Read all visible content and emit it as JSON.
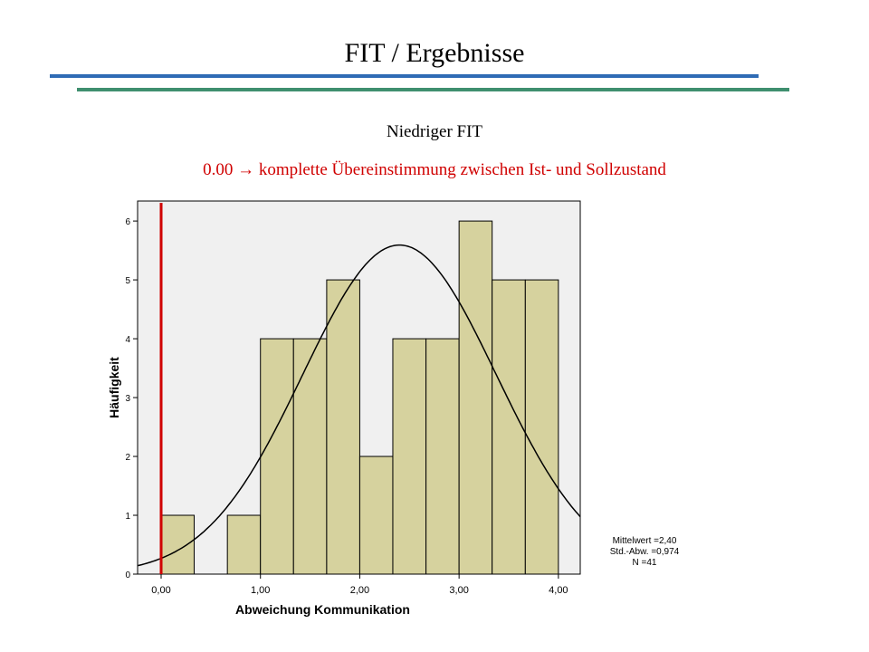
{
  "slide": {
    "title": "FIT / Ergebnisse",
    "subtitle": "Niedriger FIT",
    "note": "0.00 → komplette Übereinstimmung zwischen Ist- und Sollzustand"
  },
  "chart_data": {
    "type": "histogram",
    "x_label": "Abweichung Kommunikation",
    "y_label": "Häufigkeit",
    "bins": [
      0,
      0.333,
      0.667,
      1,
      1.333,
      1.667,
      2,
      2.333,
      2.667,
      3,
      3.333,
      3.667,
      4
    ],
    "values": [
      1,
      0,
      1,
      4,
      4,
      5,
      2,
      4,
      4,
      6,
      5,
      5
    ],
    "color": "#d6d29e",
    "xlim": [
      -0.237,
      4.22
    ],
    "ylim": [
      0,
      6.34
    ],
    "xticks": [
      {
        "value": 0,
        "label": "0,00"
      },
      {
        "value": 1,
        "label": "1,00"
      },
      {
        "value": 2,
        "label": "2,00"
      },
      {
        "value": 3,
        "label": "3,00"
      },
      {
        "value": 4,
        "label": "4,00"
      }
    ],
    "yticks": [
      0,
      1,
      2,
      3,
      4,
      5,
      6
    ],
    "reference_line": {
      "x": 0,
      "color": "#d00000"
    },
    "normal_fit": {
      "mean": 2.4,
      "sd": 0.974,
      "n": 41,
      "labels": [
        "Mittelwert =2,40",
        "Std.-Abw. =0,974",
        "N =41"
      ]
    }
  }
}
